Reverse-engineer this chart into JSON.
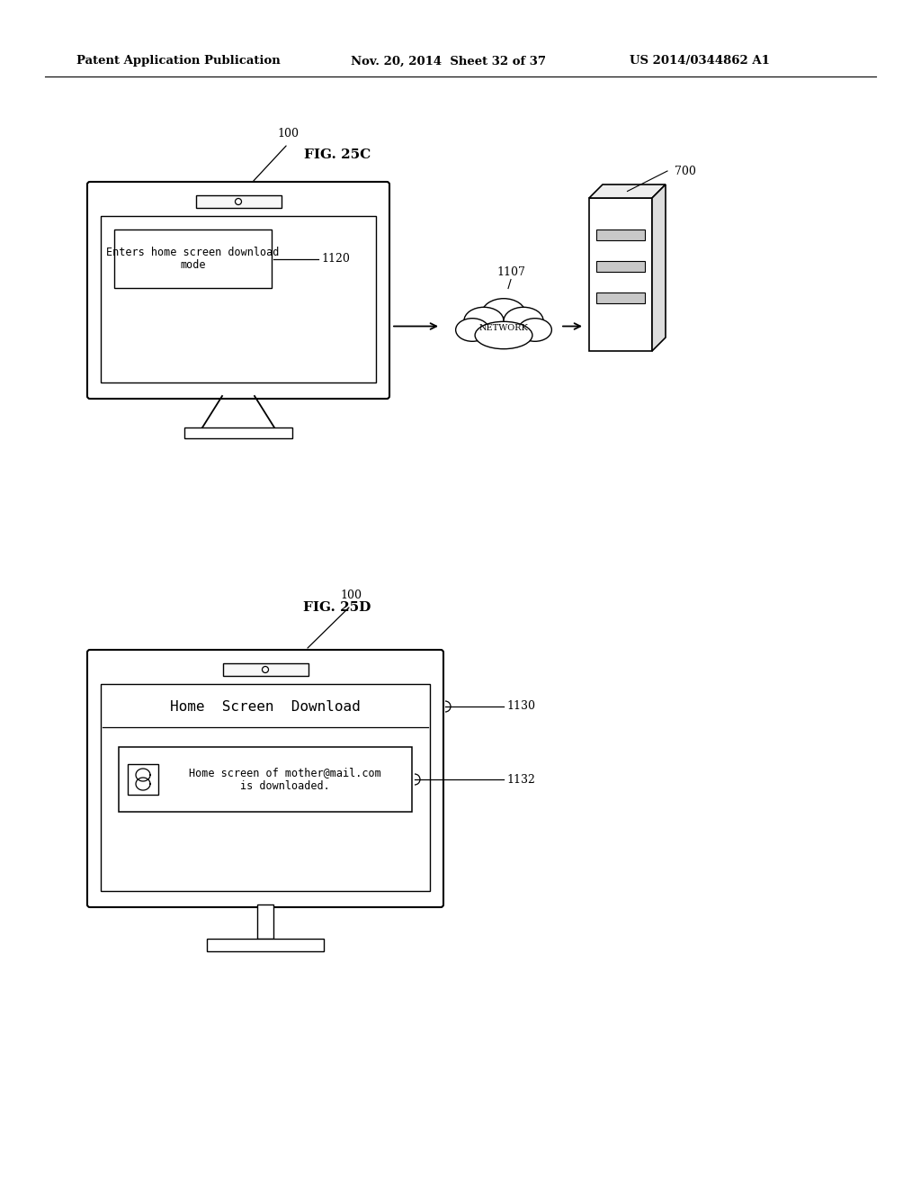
{
  "bg_color": "#ffffff",
  "header_left": "Patent Application Publication",
  "header_mid": "Nov. 20, 2014  Sheet 32 of 37",
  "header_right": "US 2014/0344862 A1",
  "fig25c_label": "FIG. 25C",
  "fig25d_label": "FIG. 25D",
  "label_100_c": "100",
  "label_700": "700",
  "label_1107": "1107",
  "label_1120": "1120",
  "label_100_d": "100",
  "label_1130": "1130",
  "label_1132": "1132",
  "tv_screen_text_c": "Enters home screen download\nmode",
  "network_label": "NETWORK",
  "home_screen_title": "Home  Screen  Download",
  "download_msg_line1": "Home screen of mother@mail.com",
  "download_msg_line2": "is downloaded."
}
